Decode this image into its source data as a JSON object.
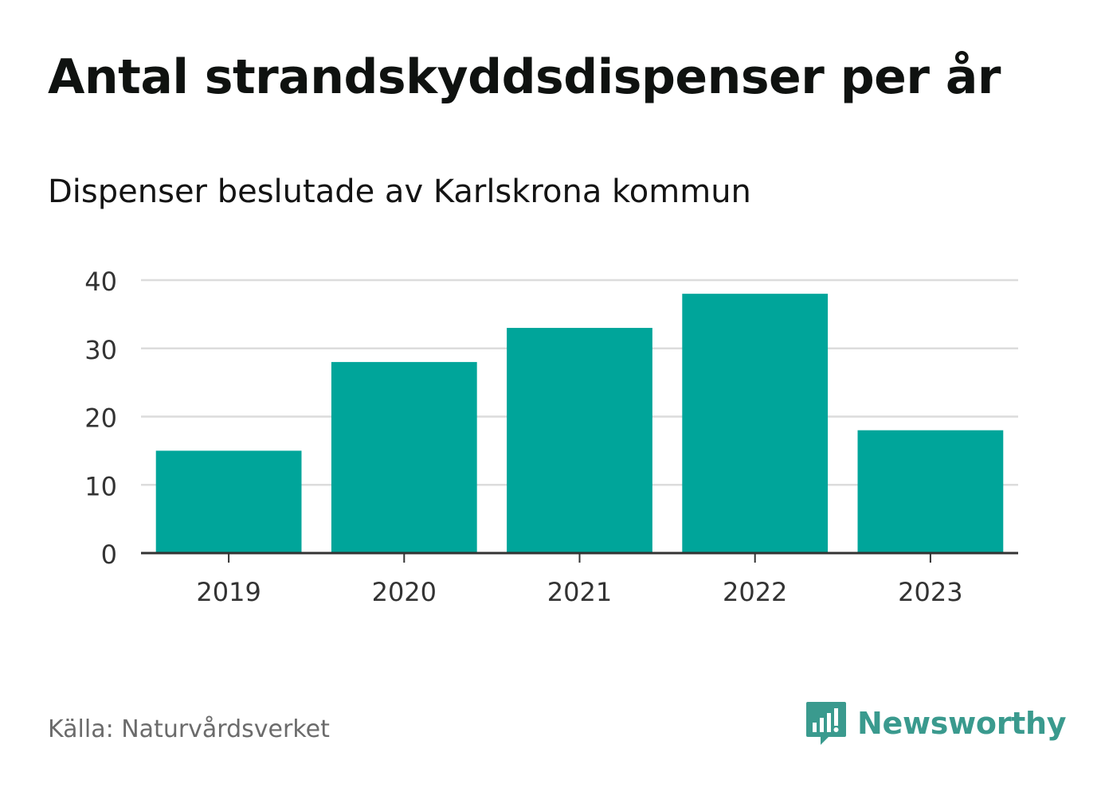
{
  "title": "Antal strandskyddsdispenser per år",
  "subtitle": "Dispenser beslutade av Karlskrona kommun",
  "source": "Källa: Naturvårdsverket",
  "brand": "Newsworthy",
  "colors": {
    "bar": "#00a59a",
    "grid": "#dcdcdc",
    "axis": "#333333",
    "brand": "#3a9a8e"
  },
  "icons": {
    "logo": "newsworthy-chat-bubble-bars-icon"
  },
  "chart_data": {
    "type": "bar",
    "title": "Antal strandskyddsdispenser per år",
    "subtitle": "Dispenser beslutade av Karlskrona kommun",
    "categories": [
      "2019",
      "2020",
      "2021",
      "2022",
      "2023"
    ],
    "values": [
      15,
      28,
      33,
      38,
      18
    ],
    "xlabel": "",
    "ylabel": "",
    "ylim": [
      0,
      40
    ],
    "yticks": [
      0,
      10,
      20,
      30,
      40
    ],
    "grid": true,
    "legend": "none"
  }
}
